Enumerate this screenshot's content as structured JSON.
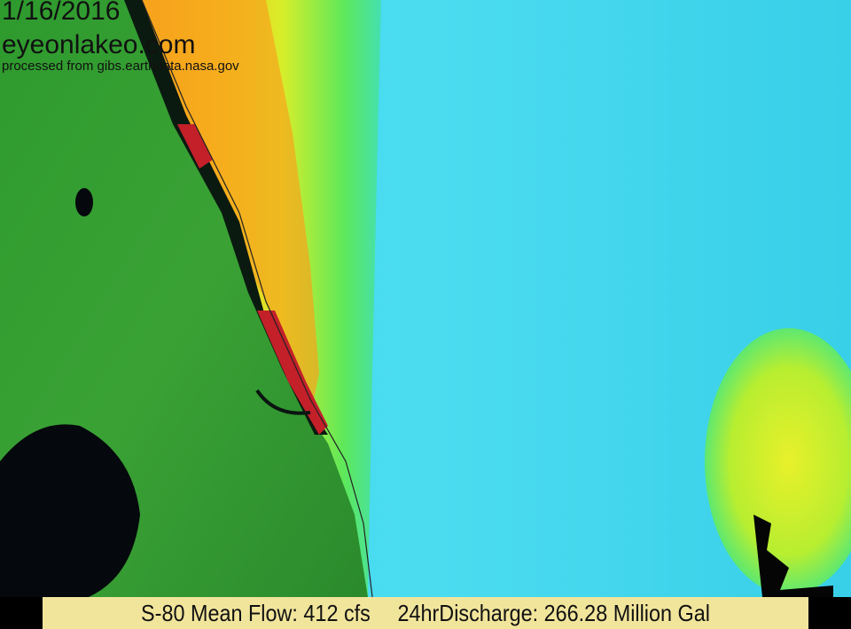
{
  "overlay": {
    "date": "1/16/2016",
    "site": "eyeonlakeo.com",
    "source": "processed from gibs.earthdata.nasa.gov"
  },
  "footer": {
    "mean_flow": "S-80 Mean Flow: 412 cfs",
    "discharge": "24hrDischarge: 266.28 Million Gal"
  },
  "colors": {
    "land": "#2f9a2c",
    "ocean": "#3fd8ee",
    "plume_high": "#f7a21a",
    "plume_mid": "#f2e21a",
    "transition": "#7de84a",
    "lake": "#05080c",
    "footer_bg": "#f1e59c"
  }
}
